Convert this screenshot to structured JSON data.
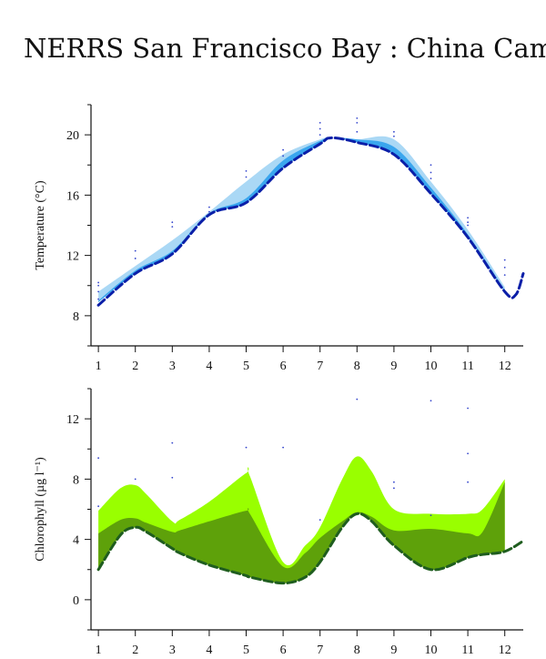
{
  "page": {
    "title": "NERRS San Francisco Bay : China Camp"
  },
  "chart_data": [
    {
      "type": "area",
      "ylabel": "Temperature (°C)",
      "xlabel": "",
      "xlim": [
        0.8,
        12.5
      ],
      "ylim": [
        6.0,
        22.0
      ],
      "x_ticks": [
        1,
        2,
        3,
        4,
        5,
        6,
        7,
        8,
        9,
        10,
        11,
        12
      ],
      "y_ticks": [
        8,
        12,
        16,
        20
      ],
      "colors": {
        "outer": "#aad8f5",
        "inner": "#3aa6ee",
        "line": "#0b1fa8",
        "points": "#3344cc"
      },
      "bands": [
        {
          "style": "outer",
          "x": [
            1,
            2,
            3,
            4,
            5,
            6,
            7,
            7.3,
            8,
            9,
            10,
            11,
            12
          ],
          "upper": [
            9.6,
            11.3,
            13.0,
            14.9,
            16.9,
            18.7,
            19.7,
            19.8,
            19.7,
            19.7,
            16.9,
            13.7,
            9.9
          ],
          "lower": [
            8.9,
            10.8,
            12.1,
            14.7,
            15.5,
            17.8,
            19.4,
            19.8,
            19.5,
            18.7,
            16.1,
            13.2,
            9.6
          ]
        },
        {
          "style": "inner",
          "x": [
            1,
            2,
            3,
            4,
            5,
            6,
            7,
            7.3,
            8,
            9,
            10,
            11,
            12
          ],
          "upper": [
            9.0,
            11.0,
            12.3,
            14.8,
            15.8,
            18.3,
            19.6,
            19.8,
            19.7,
            19.2,
            16.5,
            13.4,
            9.7
          ],
          "lower": [
            8.9,
            10.8,
            12.1,
            14.7,
            15.5,
            17.8,
            19.4,
            19.8,
            19.5,
            18.7,
            16.1,
            13.2,
            9.6
          ]
        }
      ],
      "mean_line": {
        "x": [
          1,
          2,
          3,
          4,
          5,
          6,
          7,
          7.3,
          8,
          9,
          10,
          11,
          12,
          12.3,
          12.5
        ],
        "y": [
          8.7,
          10.8,
          12.1,
          14.7,
          15.5,
          17.8,
          19.4,
          19.8,
          19.5,
          18.7,
          16.1,
          13.2,
          9.6,
          9.4,
          10.8
        ]
      },
      "points": {
        "x": [
          1,
          1,
          1,
          1,
          2,
          2,
          3,
          3,
          4,
          4,
          5,
          5,
          6,
          6,
          7,
          7,
          7,
          8,
          8,
          8,
          9,
          9,
          10,
          10,
          10,
          11,
          11,
          11,
          12,
          12,
          12
        ],
        "y": [
          10.2,
          10.0,
          9.6,
          9.1,
          12.3,
          11.8,
          14.2,
          13.9,
          15.2,
          14.9,
          17.6,
          17.2,
          19.0,
          18.6,
          20.8,
          20.4,
          20.0,
          21.1,
          20.8,
          20.2,
          20.2,
          19.9,
          18.0,
          17.5,
          17.1,
          14.5,
          14.2,
          14.0,
          11.7,
          11.2,
          10.7
        ]
      }
    },
    {
      "type": "area",
      "ylabel": "Chlorophyll (µg l⁻¹)",
      "xlabel": "",
      "xlim": [
        0.8,
        12.5
      ],
      "ylim": [
        -2.0,
        14.0
      ],
      "x_ticks": [
        1,
        2,
        3,
        4,
        5,
        6,
        7,
        8,
        9,
        10,
        11,
        12
      ],
      "y_ticks": [
        0,
        4,
        8,
        12
      ],
      "colors": {
        "outer": "#99ff00",
        "inner": "#5ea10a",
        "line": "#1f5d1f",
        "points": "#3344cc"
      },
      "bands": [
        {
          "style": "outer",
          "x": [
            1,
            1.6,
            2,
            2.3,
            3,
            3.2,
            4,
            5,
            5.1,
            6,
            6.6,
            7,
            7.6,
            8,
            8.4,
            9,
            10,
            11,
            11.4,
            12
          ],
          "upper": [
            5.9,
            7.4,
            7.6,
            7.0,
            5.2,
            5.3,
            6.5,
            8.4,
            8.2,
            2.5,
            3.6,
            4.8,
            8.0,
            9.5,
            8.5,
            6.0,
            5.7,
            5.7,
            6.0,
            8.0
          ],
          "lower": [
            2.0,
            4.3,
            4.8,
            4.5,
            3.4,
            3.1,
            2.3,
            1.6,
            1.5,
            1.1,
            1.5,
            2.5,
            4.8,
            5.7,
            5.2,
            3.6,
            2.0,
            2.8,
            3.0,
            3.2
          ]
        },
        {
          "style": "inner",
          "x": [
            1,
            1.6,
            2,
            2.3,
            3,
            3.2,
            4,
            5,
            5.1,
            6,
            6.6,
            7,
            7.6,
            8,
            8.4,
            9,
            10,
            11,
            11.4,
            12
          ],
          "upper": [
            4.4,
            5.3,
            5.4,
            5.1,
            4.5,
            4.6,
            5.2,
            5.9,
            5.7,
            2.2,
            3.1,
            4.1,
            5.2,
            5.8,
            5.5,
            4.6,
            4.7,
            4.4,
            4.5,
            7.8
          ],
          "lower": [
            2.0,
            4.3,
            4.8,
            4.5,
            3.4,
            3.1,
            2.3,
            1.6,
            1.5,
            1.1,
            1.5,
            2.5,
            4.8,
            5.7,
            5.2,
            3.6,
            2.0,
            2.8,
            3.0,
            3.2
          ]
        }
      ],
      "mean_line": {
        "x": [
          1,
          1.6,
          2,
          2.3,
          3,
          3.2,
          4,
          5,
          5.1,
          6,
          6.6,
          7,
          7.6,
          8,
          8.4,
          9,
          10,
          11,
          11.4,
          12,
          12.5
        ],
        "y": [
          2.0,
          4.3,
          4.8,
          4.5,
          3.4,
          3.1,
          2.3,
          1.6,
          1.5,
          1.1,
          1.5,
          2.5,
          4.8,
          5.7,
          5.2,
          3.6,
          2.0,
          2.8,
          3.0,
          3.2,
          3.9
        ]
      },
      "points": {
        "x": [
          1,
          1,
          2,
          3,
          3,
          5,
          6,
          7,
          8,
          9,
          9,
          10,
          10,
          11,
          11,
          11
        ],
        "y": [
          9.4,
          6.2,
          8.0,
          10.4,
          8.1,
          10.1,
          10.1,
          5.3,
          13.3,
          7.8,
          7.4,
          13.2,
          5.6,
          12.7,
          9.7,
          7.8
        ]
      }
    }
  ]
}
